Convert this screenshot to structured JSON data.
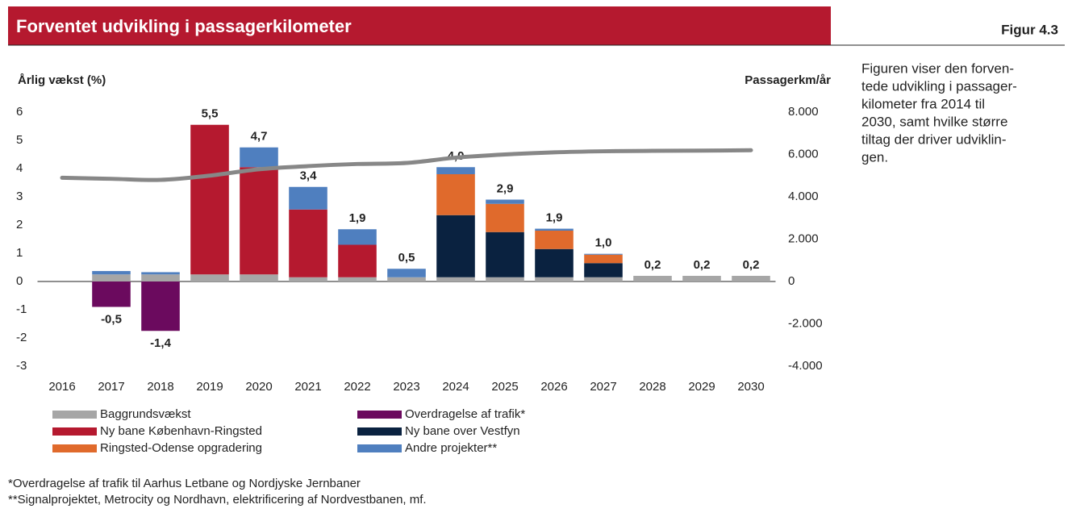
{
  "header": {
    "title": "Forventet udvikling i passagerkilometer",
    "figure": "Figur 4.3"
  },
  "side_text": [
    "Figuren viser den forven-",
    "tede udvikling i passager-",
    "kilometer fra 2014 til",
    "2030, samt hvilke større",
    "tiltag der driver udviklin-",
    "gen."
  ],
  "footnotes": [
    "*Overdragelse af trafik til Aarhus Letbane og Nordjyske Jernbaner",
    "**Signalprojektet, Metrocity og Nordhavn, elektrificering af Nordvestbanen, mf."
  ],
  "chart_data": {
    "type": "stacked_bar",
    "y_label": "Årlig vækst (%)",
    "y2_label": "Passagerkm/år",
    "categories": [
      "2016",
      "2017",
      "2018",
      "2019",
      "2020",
      "2021",
      "2022",
      "2023",
      "2024",
      "2025",
      "2026",
      "2027",
      "2028",
      "2029",
      "2030"
    ],
    "series": [
      {
        "name": "Baggrundsvækst",
        "color": "#a6a6a6",
        "values": [
          null,
          0.25,
          0.25,
          0.25,
          0.25,
          0.15,
          0.15,
          0.15,
          0.15,
          0.15,
          0.15,
          0.15,
          0.2,
          0.2,
          0.2
        ]
      },
      {
        "name": "Overdragelse af trafik*",
        "color": "#6b0a5e",
        "values": [
          null,
          -0.9,
          -1.75,
          0,
          0,
          0,
          0,
          0,
          0,
          0,
          0,
          0,
          0,
          0,
          0
        ]
      },
      {
        "name": "Ny bane København-Ringsted",
        "color": "#b5192f",
        "values": [
          null,
          0,
          0,
          5.3,
          3.8,
          2.4,
          1.15,
          0,
          0,
          0,
          0,
          0,
          0,
          0,
          0
        ]
      },
      {
        "name": "Ny bane over Vestfyn",
        "color": "#0a2240",
        "values": [
          null,
          0,
          0,
          0,
          0,
          0,
          0,
          0,
          2.2,
          1.6,
          1.0,
          0.5,
          0,
          0,
          0
        ]
      },
      {
        "name": "Ringsted-Odense opgradering",
        "color": "#e06a2c",
        "values": [
          null,
          0,
          0,
          0,
          0,
          0,
          0,
          0,
          1.45,
          1.0,
          0.65,
          0.3,
          0,
          0,
          0
        ]
      },
      {
        "name": "Andre projekter**",
        "color": "#4f7fbf",
        "values": [
          null,
          0.12,
          0.08,
          0,
          0.7,
          0.8,
          0.55,
          0.3,
          0.25,
          0.15,
          0.07,
          0.03,
          0,
          0,
          0
        ]
      }
    ],
    "totals": {
      "values": [
        null,
        -0.5,
        -1.4,
        5.5,
        4.7,
        3.4,
        1.9,
        0.5,
        4.0,
        2.9,
        1.9,
        1.0,
        0.2,
        0.2,
        0.2
      ],
      "value_labels": [
        null,
        "-0,5",
        "-1,4",
        "5,5",
        "4,7",
        "3,4",
        "1,9",
        "0,5",
        "4,0",
        "2,9",
        "1,9",
        "1,0",
        "0,2",
        "0,2",
        "0,2"
      ]
    },
    "line": {
      "axis": "y2",
      "color": "#878787",
      "values": [
        4900,
        4850,
        4800,
        5000,
        5300,
        5450,
        5550,
        5600,
        5850,
        6000,
        6100,
        6150,
        6170,
        6180,
        6200
      ]
    },
    "ylim": [
      -3,
      6
    ],
    "yticks": [
      6,
      5,
      4,
      3,
      2,
      1,
      0,
      -1,
      -2,
      -3
    ],
    "y2lim": [
      -4000,
      8000
    ],
    "y2ticks": [
      {
        "value": 8000,
        "label": "8.000"
      },
      {
        "value": 6000,
        "label": "6.000"
      },
      {
        "value": 4000,
        "label": "4.000"
      },
      {
        "value": 2000,
        "label": "2.000"
      },
      0,
      {
        "value": -2000,
        "label": "-2.000"
      },
      {
        "value": -4000,
        "label": "-4.000"
      }
    ]
  }
}
